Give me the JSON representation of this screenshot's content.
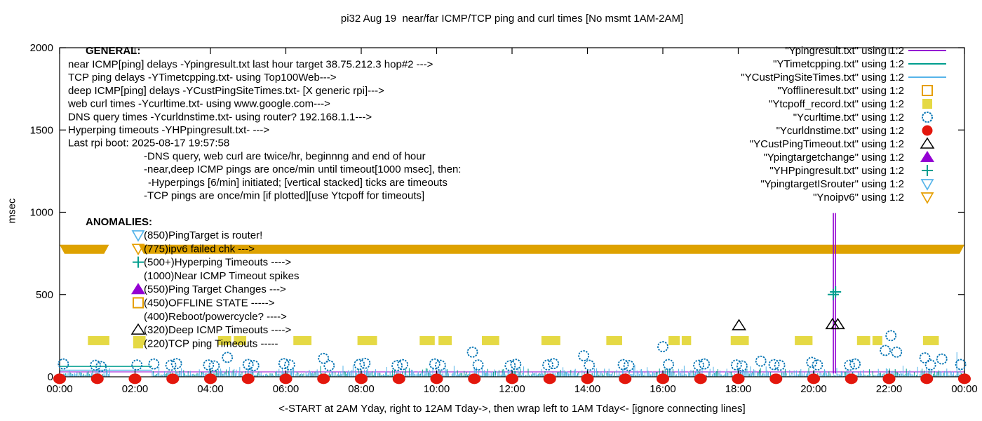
{
  "chart_data": {
    "type": "line",
    "title": "pi32 Aug 19  near/far ICMP/TCP ping and curl times [No msmt 1AM-2AM]",
    "ylabel": "msec",
    "xlabel": "<-START at 2AM Yday, right to 12AM Tday->, then wrap left to 1AM Tday<- [ignore connecting lines]",
    "ylim": [
      0,
      2000
    ],
    "y_ticks": [
      0,
      500,
      1000,
      1500,
      2000
    ],
    "x_ticks": [
      "00:00",
      "02:00",
      "04:00",
      "06:00",
      "08:00",
      "10:00",
      "12:00",
      "14:00",
      "16:00",
      "18:00",
      "20:00",
      "22:00",
      "00:00"
    ],
    "x_range_hours": [
      0,
      24
    ],
    "no_measurement_gap_hours": [
      1.35,
      2.45
    ],
    "colors": {
      "purple": "#9400d3",
      "teal": "#009e8e",
      "lightblue": "#56b4e9",
      "orange": "#e69f00",
      "yellow": "#e5d944",
      "blue": "#0072b2",
      "red": "#e3170d",
      "black": "#000000",
      "gold_band": "#dea200"
    },
    "legend": [
      {
        "label": "\"Ypingresult.txt\" using 1:2",
        "marker": "line",
        "color": "purple"
      },
      {
        "label": "\"YTimetcpping.txt\" using 1:2",
        "marker": "line",
        "color": "teal"
      },
      {
        "label": "\"YCustPingSiteTimes.txt\" using 1:2",
        "marker": "line",
        "color": "lightblue"
      },
      {
        "label": "\"Yofflineresult.txt\" using 1:2",
        "marker": "sq-open",
        "color": "orange"
      },
      {
        "label": "\"Ytcpoff_record.txt\" using 1:2",
        "marker": "sq-fill",
        "color": "yellow"
      },
      {
        "label": "\"Ycurltime.txt\" using 1:2",
        "marker": "circ-open",
        "color": "blue"
      },
      {
        "label": "\"Ycurldnstime.txt\" using 1:2",
        "marker": "circ-fill",
        "color": "red"
      },
      {
        "label": "\"YCustPingTimeout.txt\" using 1:2",
        "marker": "tri-up-open",
        "color": "black"
      },
      {
        "label": "\"Ypingtargetchange\" using 1:2",
        "marker": "tri-up-fill",
        "color": "purple"
      },
      {
        "label": "\"YHPpingresult.txt\" using 1:2",
        "marker": "plus",
        "color": "teal"
      },
      {
        "label": "\"YpingtargetISrouter\" using 1:2",
        "marker": "tri-down-open",
        "color": "lightblue"
      },
      {
        "label": "\"Ynoipv6\" using 1:2",
        "marker": "tri-down-open",
        "color": "orange"
      }
    ],
    "annotations": {
      "general": {
        "heading": "GENERAL:",
        "lines": [
          {
            "t": "near ICMP[ping] delays -Ypingresult.txt last hour target 38.75.212.3 hop#2 --->",
            "ind": 0
          },
          {
            "t": "TCP ping delays -YTimetcpping.txt- using Top100Web--->",
            "ind": 0
          },
          {
            "t": "deep ICMP[ping] delays -YCustPingSiteTimes.txt- [X generic rpi]--->",
            "ind": 0
          },
          {
            "t": "web curl times -Ycurltime.txt- using www.google.com--->",
            "ind": 0
          },
          {
            "t": "DNS query times -Ycurldnstime.txt- using router? 192.168.1.1--->",
            "ind": 0
          },
          {
            "t": "Hyperping timeouts -YHPpingresult.txt- --->",
            "ind": 0
          },
          {
            "t": "Last rpi boot: 2025-08-17 19:57:58",
            "ind": 0
          },
          {
            "t": "-DNS query, web curl are twice/hr, beginnng and end of hour",
            "ind": 1
          },
          {
            "t": "-near,deep ICMP pings are once/min until timeout[1000 msec], then:",
            "ind": 1
          },
          {
            "t": "-Hyperpings [6/min] initiated; [vertical stacked] ticks are timeouts",
            "ind": 2
          },
          {
            "t": "-TCP pings are once/min [if plotted][use Ytcpoff for timeouts]",
            "ind": 1
          }
        ]
      },
      "anomalies": {
        "heading": "ANOMALIES:",
        "items": [
          {
            "marker": "tri-down-open",
            "color": "lightblue",
            "text": "(850)PingTarget is router!"
          },
          {
            "marker": "tri-down-open",
            "color": "orange",
            "text": "(775)ipv6 failed chk --->"
          },
          {
            "marker": "plus",
            "color": "teal",
            "text": "(500+)Hyperping Timeouts ---->"
          },
          {
            "marker": "none",
            "color": "black",
            "text": "(1000)Near ICMP Timeout spikes"
          },
          {
            "marker": "tri-up-fill",
            "color": "purple",
            "text": "(550)Ping Target Changes --->"
          },
          {
            "marker": "sq-open",
            "color": "orange",
            "text": "(450)OFFLINE STATE ----->"
          },
          {
            "marker": "none",
            "color": "black",
            "text": "(400)Reboot/powercycle? ---->"
          },
          {
            "marker": "tri-up-open",
            "color": "black",
            "text": "(320)Deep ICMP Timeouts ---->"
          },
          {
            "marker": "sq-fill",
            "color": "yellow",
            "text": "(220)TCP ping Timeouts -----"
          }
        ]
      }
    },
    "series": {
      "near_icmp_line": {
        "name": "Ypingresult",
        "color": "purple",
        "baseline_msec": 30,
        "timeout_spike": {
          "hour": 20.55,
          "from_msec": 20,
          "to_msec": 995
        }
      },
      "tcp_ping_noise": {
        "name": "YTimetcpping",
        "color": "teal",
        "min_msec": 2,
        "max_msec": 58,
        "flatline_msec": 63,
        "seed": 42
      },
      "deep_icmp_noise": {
        "name": "YCustPingSiteTimes",
        "color": "lightblue",
        "min_msec": 2,
        "max_msec": 72,
        "flatline_msec": 40,
        "seed": 99
      },
      "curl_points": {
        "name": "Ycurltime",
        "color": "blue",
        "points": [
          [
            0.1,
            78
          ],
          [
            0.95,
            70
          ],
          [
            1.1,
            62
          ],
          [
            2.05,
            72
          ],
          [
            2.5,
            78
          ],
          [
            2.95,
            70
          ],
          [
            3.1,
            80
          ],
          [
            3.95,
            72
          ],
          [
            4.1,
            66
          ],
          [
            4.45,
            118
          ],
          [
            5.0,
            75
          ],
          [
            5.15,
            68
          ],
          [
            5.95,
            80
          ],
          [
            6.1,
            72
          ],
          [
            7.0,
            112
          ],
          [
            7.15,
            68
          ],
          [
            7.95,
            75
          ],
          [
            8.1,
            82
          ],
          [
            8.95,
            68
          ],
          [
            9.1,
            74
          ],
          [
            9.95,
            78
          ],
          [
            10.1,
            70
          ],
          [
            10.95,
            150
          ],
          [
            11.1,
            72
          ],
          [
            11.95,
            68
          ],
          [
            12.1,
            76
          ],
          [
            12.95,
            72
          ],
          [
            13.1,
            80
          ],
          [
            13.9,
            128
          ],
          [
            14.05,
            70
          ],
          [
            14.95,
            74
          ],
          [
            15.1,
            68
          ],
          [
            16.0,
            183
          ],
          [
            16.15,
            75
          ],
          [
            16.95,
            70
          ],
          [
            17.1,
            78
          ],
          [
            17.95,
            72
          ],
          [
            18.1,
            66
          ],
          [
            18.6,
            95
          ],
          [
            18.95,
            74
          ],
          [
            19.1,
            70
          ],
          [
            19.95,
            88
          ],
          [
            20.1,
            72
          ],
          [
            20.95,
            70
          ],
          [
            21.1,
            78
          ],
          [
            21.9,
            160
          ],
          [
            22.05,
            250
          ],
          [
            22.2,
            150
          ],
          [
            22.95,
            115
          ],
          [
            23.1,
            72
          ],
          [
            23.4,
            108
          ],
          [
            23.9,
            75
          ]
        ]
      },
      "dns_points": {
        "name": "Ycurldnstime",
        "color": "red",
        "value_msec": 5,
        "hours": [
          0,
          1,
          2,
          3,
          4,
          5,
          6,
          7,
          8,
          9,
          10,
          11,
          12,
          13,
          14,
          15,
          16,
          17,
          18,
          19,
          20,
          21,
          22,
          23,
          24
        ]
      },
      "tcpoff_segments": {
        "name": "Ytcpoff_record",
        "color": "yellow",
        "value_msec": 220,
        "segments": [
          [
            0.75,
            1.32
          ],
          [
            1.95,
            2.28
          ],
          [
            4.2,
            4.55
          ],
          [
            4.62,
            4.95
          ],
          [
            6.2,
            6.68
          ],
          [
            7.9,
            8.42
          ],
          [
            9.55,
            9.95
          ],
          [
            10.05,
            10.4
          ],
          [
            11.2,
            11.66
          ],
          [
            12.78,
            13.28
          ],
          [
            14.5,
            14.92
          ],
          [
            16.15,
            16.45
          ],
          [
            16.5,
            16.75
          ],
          [
            17.8,
            18.28
          ],
          [
            19.5,
            19.97
          ],
          [
            21.15,
            21.5
          ],
          [
            21.56,
            21.82
          ],
          [
            22.9,
            23.32
          ]
        ]
      },
      "noipv6_band": {
        "name": "Ynoipv6",
        "color": "gold_band",
        "value_msec": 775,
        "segments": [
          [
            0,
            1.31
          ],
          [
            2.1,
            24
          ]
        ]
      },
      "deep_icmp_timeouts": {
        "name": "YCustPingTimeout",
        "color": "black",
        "points": [
          [
            18.02,
            312
          ],
          [
            20.5,
            318
          ],
          [
            20.64,
            318
          ]
        ]
      },
      "hyperping_timeouts": {
        "name": "YHPpingresult",
        "color": "teal",
        "points": [
          [
            20.52,
            500
          ],
          [
            20.58,
            516
          ]
        ]
      }
    }
  }
}
